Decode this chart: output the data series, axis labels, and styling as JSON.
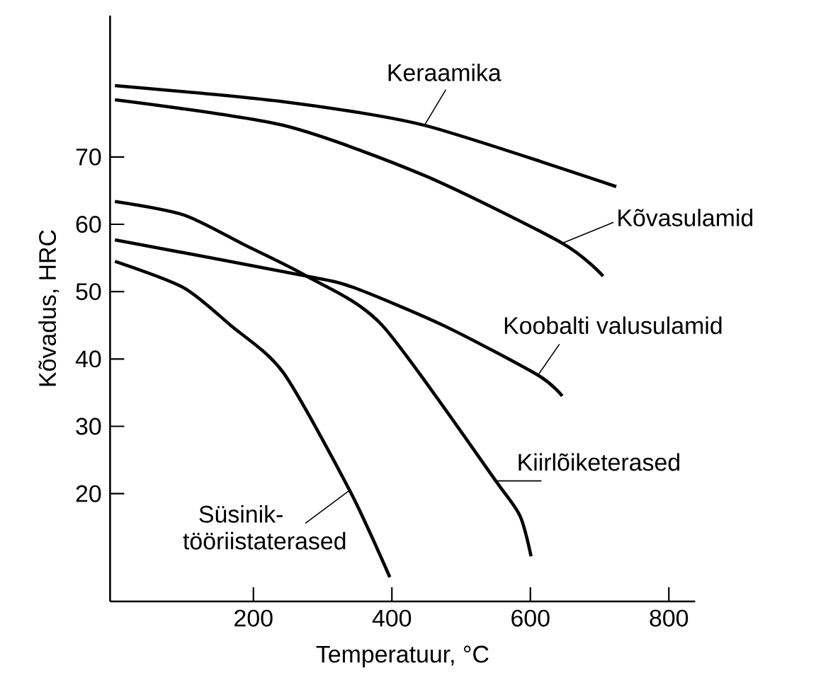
{
  "chart_data": {
    "type": "line",
    "xlabel": "Temperatuur, °C",
    "ylabel": "Kõvadus, HRC",
    "xlim": [
      -7,
      838
    ],
    "ylim": [
      4,
      91
    ],
    "xticks": [
      200,
      400,
      600,
      800
    ],
    "yticks": [
      20,
      30,
      40,
      50,
      60,
      70
    ],
    "grid": false,
    "marker": "none",
    "line_style": "solid",
    "series": [
      {
        "name": "Keraamika",
        "color": "#000000",
        "x": [
          0,
          243,
          447,
          724
        ],
        "values": [
          80.6,
          78.2,
          74.7,
          65.6
        ]
      },
      {
        "name": "Kõvasulamid",
        "color": "#000000",
        "x": [
          0,
          243,
          448,
          646,
          705
        ],
        "values": [
          78.5,
          74.7,
          67.2,
          57.2,
          52.3
        ]
      },
      {
        "name": "Koobalti valusulamid",
        "color": "#000000",
        "x": [
          0,
          277,
          345,
          474,
          611,
          646
        ],
        "values": [
          57.7,
          52.3,
          50.6,
          45,
          37.6,
          34.5
        ]
      },
      {
        "name": "Kiirlõiketerased",
        "color": "#000000",
        "x": [
          0,
          99,
          188,
          277,
          386,
          550,
          585,
          601
        ],
        "values": [
          63.4,
          61.4,
          56.9,
          52.3,
          45,
          21.9,
          16.7,
          10.7
        ]
      },
      {
        "name": "Süsinik-tööriistaterased",
        "color": "#000000",
        "x": [
          0,
          99,
          167,
          243,
          339,
          397
        ],
        "values": [
          54.5,
          50.6,
          45,
          38,
          20.5,
          7.6
        ]
      }
    ]
  }
}
